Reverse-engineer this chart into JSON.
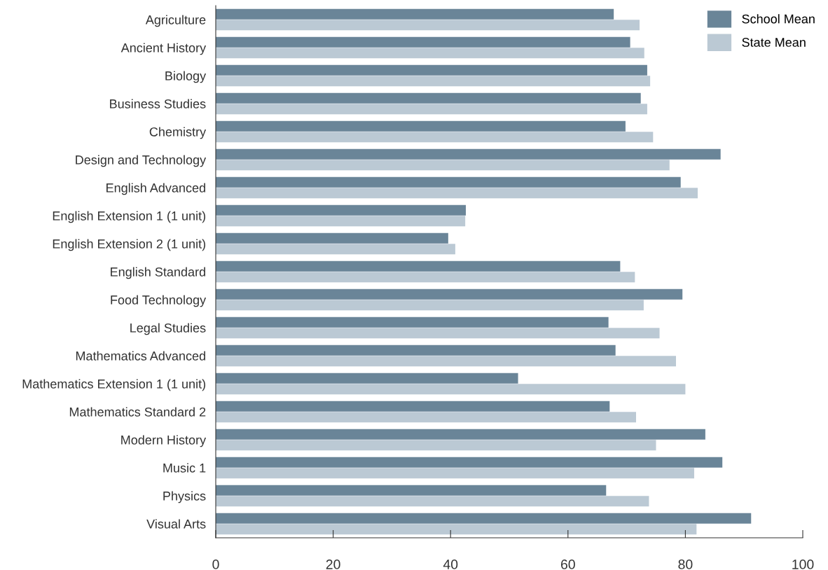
{
  "chart_data": {
    "type": "bar",
    "orientation": "horizontal",
    "categories": [
      "Agriculture",
      "Ancient History",
      "Biology",
      "Business Studies",
      "Chemistry",
      "Design and Technology",
      "English Advanced",
      "English Extension 1 (1 unit)",
      "English Extension 2 (1 unit)",
      "English Standard",
      "Food Technology",
      "Legal Studies",
      "Mathematics Advanced",
      "Mathematics Extension 1 (1 unit)",
      "Mathematics Standard 2",
      "Modern History",
      "Music 1",
      "Physics",
      "Visual Arts"
    ],
    "series": [
      {
        "name": "School Mean",
        "color": "#6a8598",
        "values": [
          67.8,
          70.6,
          73.5,
          72.4,
          69.8,
          86.0,
          79.2,
          42.6,
          39.6,
          68.9,
          79.5,
          66.9,
          68.1,
          51.5,
          67.1,
          83.4,
          86.3,
          66.5,
          91.2
        ]
      },
      {
        "name": "State Mean",
        "color": "#bbc9d4",
        "values": [
          72.2,
          73.0,
          74.0,
          73.5,
          74.5,
          77.3,
          82.1,
          42.5,
          40.8,
          71.4,
          72.9,
          75.6,
          78.4,
          80.0,
          71.6,
          75.0,
          81.5,
          73.8,
          81.9
        ]
      }
    ],
    "xlim": [
      0,
      100
    ],
    "xticks": [
      0,
      20,
      40,
      60,
      80,
      100
    ],
    "grid": false,
    "legend": "top right"
  }
}
